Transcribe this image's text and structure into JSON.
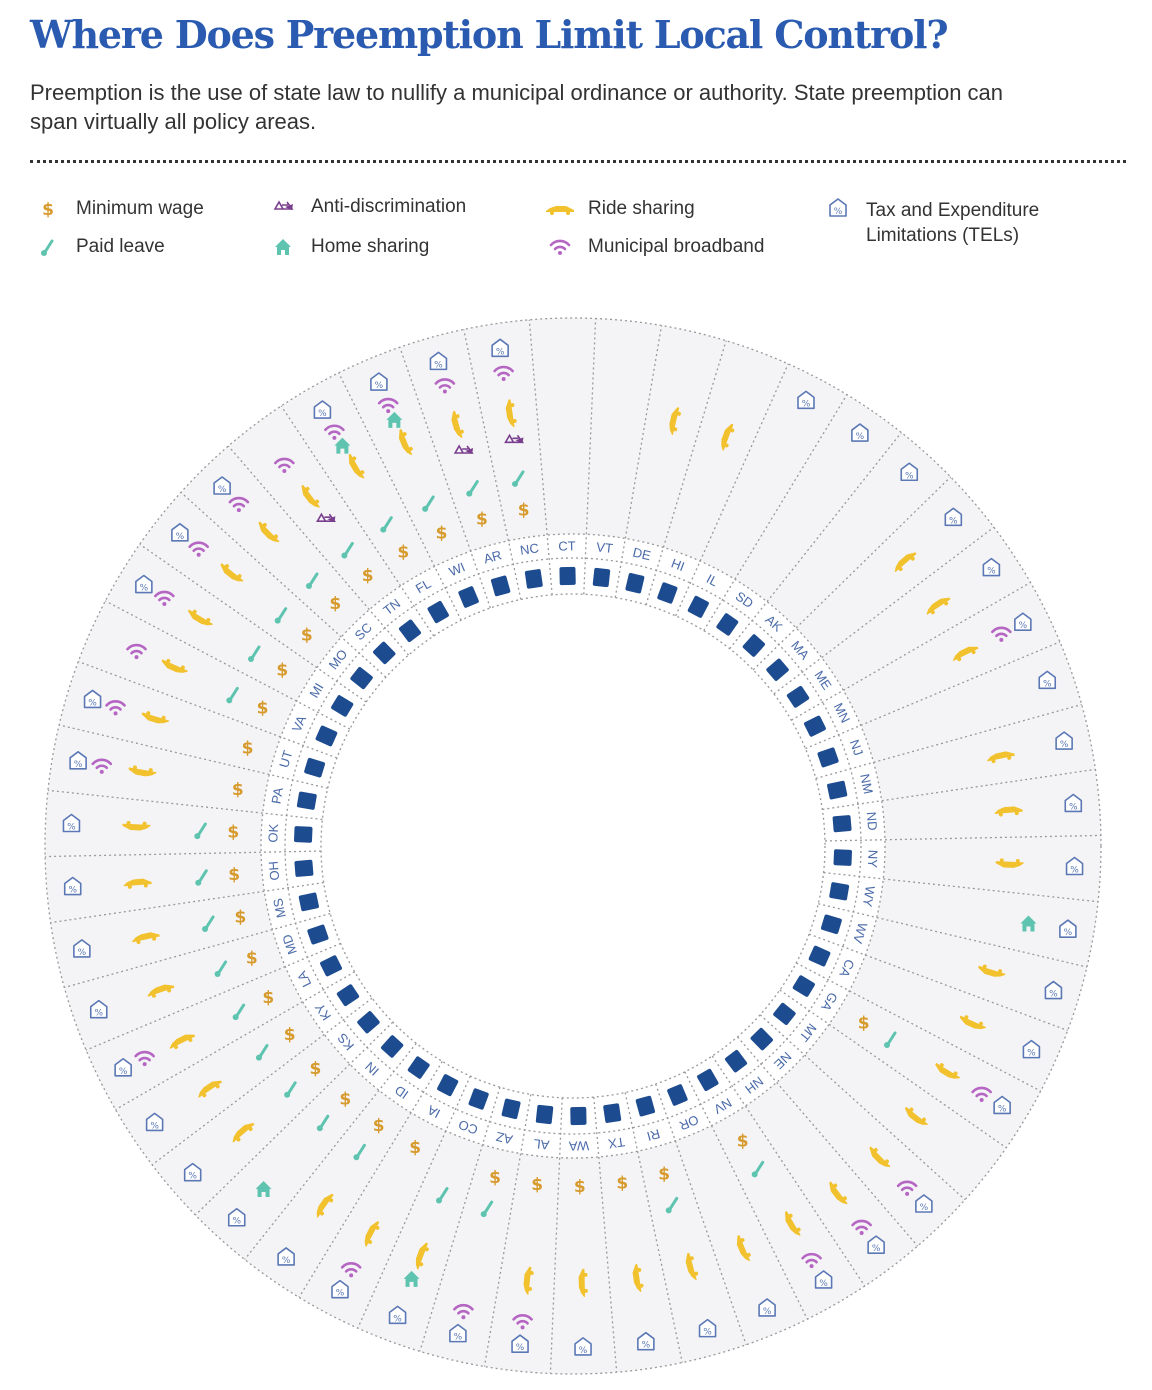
{
  "header": {
    "title": "Where Does Preemption Limit Local Control?",
    "subtitle": "Preemption is the use of state law to nullify a municipal ordinance or authority. State preemption can span virtually all policy areas."
  },
  "colors": {
    "title": "#2a5bb0",
    "min_wage": "#d79a2c",
    "paid_leave": "#5ec4b0",
    "anti_discrimination": "#7a3e8e",
    "home_sharing": "#5ec4b0",
    "ride_sharing": "#f2c12e",
    "broadband": "#b566c2",
    "tel": "#5b78b5",
    "state_shape": "#1d4b8f",
    "sector_fill": "#f4f4f6",
    "dots": "#999999"
  },
  "legend": [
    {
      "key": "min",
      "label": "Minimum wage",
      "icon": "dollar-icon"
    },
    {
      "key": "leave",
      "label": "Paid leave",
      "icon": "thermometer-icon"
    },
    {
      "key": "anti",
      "label": "Anti-discrimination",
      "icon": "scales-icon"
    },
    {
      "key": "home",
      "label": "Home sharing",
      "icon": "house-icon"
    },
    {
      "key": "ride",
      "label": "Ride sharing",
      "icon": "car-icon"
    },
    {
      "key": "broadband",
      "label": "Municipal broadband",
      "icon": "wifi-icon"
    },
    {
      "key": "tel",
      "label": "Tax and Expenditure\nLimitations (TELs)",
      "icon": "tax-tag-icon"
    }
  ],
  "chart_data": {
    "type": "radial-matrix",
    "title": "Where Does Preemption Limit Local Control?",
    "ring_order": [
      "min",
      "leave",
      "anti",
      "ride",
      "home",
      "broadband",
      "tel"
    ],
    "states": [
      {
        "state": "CT",
        "policies": []
      },
      {
        "state": "VT",
        "policies": []
      },
      {
        "state": "DE",
        "policies": [
          "ride"
        ]
      },
      {
        "state": "HI",
        "policies": [
          "ride"
        ]
      },
      {
        "state": "IL",
        "policies": [
          "tel"
        ]
      },
      {
        "state": "SD",
        "policies": [
          "tel"
        ]
      },
      {
        "state": "AK",
        "policies": [
          "tel"
        ]
      },
      {
        "state": "MA",
        "policies": [
          "ride",
          "tel"
        ]
      },
      {
        "state": "ME",
        "policies": [
          "ride",
          "tel"
        ]
      },
      {
        "state": "MN",
        "policies": [
          "ride",
          "broadband",
          "tel"
        ]
      },
      {
        "state": "NJ",
        "policies": [
          "tel"
        ]
      },
      {
        "state": "NM",
        "policies": [
          "ride",
          "tel"
        ]
      },
      {
        "state": "ND",
        "policies": [
          "ride",
          "tel"
        ]
      },
      {
        "state": "NY",
        "policies": [
          "ride",
          "tel"
        ]
      },
      {
        "state": "WY",
        "policies": [
          "home",
          "tel"
        ]
      },
      {
        "state": "WV",
        "policies": [
          "ride",
          "tel"
        ]
      },
      {
        "state": "CA",
        "policies": [
          "ride",
          "tel"
        ]
      },
      {
        "state": "GA",
        "policies": [
          "min",
          "leave",
          "ride",
          "broadband",
          "tel"
        ]
      },
      {
        "state": "MT",
        "policies": [
          "ride"
        ]
      },
      {
        "state": "NE",
        "policies": [
          "ride",
          "broadband",
          "tel"
        ]
      },
      {
        "state": "NH",
        "policies": [
          "ride",
          "broadband",
          "tel"
        ]
      },
      {
        "state": "NV",
        "policies": [
          "min",
          "leave",
          "ride",
          "broadband",
          "tel"
        ]
      },
      {
        "state": "OR",
        "policies": [
          "ride",
          "tel"
        ]
      },
      {
        "state": "RI",
        "policies": [
          "min",
          "leave",
          "ride",
          "tel"
        ]
      },
      {
        "state": "TX",
        "policies": [
          "min",
          "ride",
          "tel"
        ]
      },
      {
        "state": "WA",
        "policies": [
          "min",
          "ride",
          "tel"
        ]
      },
      {
        "state": "AL",
        "policies": [
          "min",
          "ride",
          "broadband",
          "tel"
        ]
      },
      {
        "state": "AZ",
        "policies": [
          "min",
          "leave",
          "broadband",
          "tel"
        ]
      },
      {
        "state": "CO",
        "policies": [
          "leave",
          "ride",
          "home",
          "tel"
        ]
      },
      {
        "state": "IA",
        "policies": [
          "min",
          "ride",
          "broadband",
          "tel"
        ]
      },
      {
        "state": "ID",
        "policies": [
          "min",
          "leave",
          "ride",
          "tel"
        ]
      },
      {
        "state": "IN",
        "policies": [
          "min",
          "leave",
          "home",
          "tel"
        ]
      },
      {
        "state": "KS",
        "policies": [
          "min",
          "leave",
          "ride",
          "tel"
        ]
      },
      {
        "state": "KY",
        "policies": [
          "min",
          "leave",
          "ride",
          "tel"
        ]
      },
      {
        "state": "LA",
        "policies": [
          "min",
          "leave",
          "ride",
          "broadband",
          "tel"
        ]
      },
      {
        "state": "MD",
        "policies": [
          "min",
          "leave",
          "ride",
          "tel"
        ]
      },
      {
        "state": "MS",
        "policies": [
          "min",
          "leave",
          "ride",
          "tel"
        ]
      },
      {
        "state": "OH",
        "policies": [
          "min",
          "leave",
          "ride",
          "tel"
        ]
      },
      {
        "state": "OK",
        "policies": [
          "min",
          "leave",
          "ride",
          "tel"
        ]
      },
      {
        "state": "PA",
        "policies": [
          "min",
          "ride",
          "broadband",
          "tel"
        ]
      },
      {
        "state": "UT",
        "policies": [
          "min",
          "ride",
          "broadband",
          "tel"
        ]
      },
      {
        "state": "VA",
        "policies": [
          "min",
          "leave",
          "ride",
          "broadband"
        ]
      },
      {
        "state": "MI",
        "policies": [
          "min",
          "leave",
          "ride",
          "broadband",
          "tel"
        ]
      },
      {
        "state": "MO",
        "policies": [
          "min",
          "leave",
          "ride",
          "broadband",
          "tel"
        ]
      },
      {
        "state": "SC",
        "policies": [
          "min",
          "leave",
          "ride",
          "broadband",
          "tel"
        ]
      },
      {
        "state": "TN",
        "policies": [
          "min",
          "leave",
          "anti",
          "ride",
          "broadband"
        ]
      },
      {
        "state": "FL",
        "policies": [
          "min",
          "leave",
          "ride",
          "home",
          "broadband",
          "tel"
        ]
      },
      {
        "state": "WI",
        "policies": [
          "min",
          "leave",
          "ride",
          "home",
          "broadband",
          "tel"
        ]
      },
      {
        "state": "AR",
        "policies": [
          "min",
          "leave",
          "anti",
          "ride",
          "broadband",
          "tel"
        ]
      },
      {
        "state": "NC",
        "policies": [
          "min",
          "leave",
          "anti",
          "ride",
          "broadband",
          "tel"
        ]
      }
    ]
  }
}
